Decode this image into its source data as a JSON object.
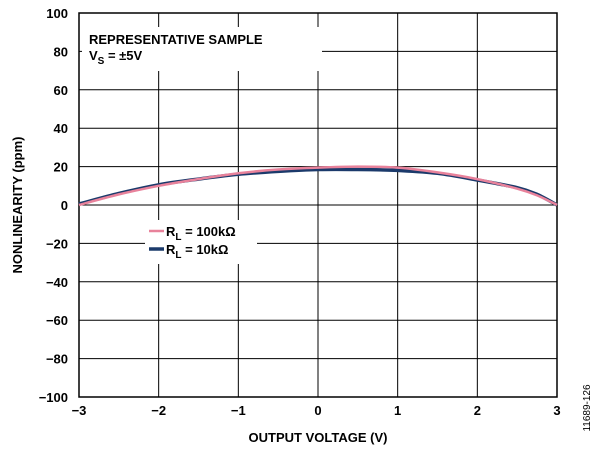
{
  "chart_data": {
    "type": "line",
    "title": "",
    "xlabel": "OUTPUT VOLTAGE (V)",
    "ylabel": "NONLINEARITY (ppm)",
    "xlim": [
      -3,
      3
    ],
    "ylim": [
      -100,
      100
    ],
    "x_ticks": [
      "−3",
      "−2",
      "−1",
      "0",
      "1",
      "2",
      "3"
    ],
    "y_ticks": [
      "100",
      "80",
      "60",
      "40",
      "20",
      "0",
      "−20",
      "−40",
      "−60",
      "−80",
      "−100"
    ],
    "grid": true,
    "annotation": {
      "line1": "REPRESENTATIVE SAMPLE",
      "line2_main": "V",
      "line2_sub": "S",
      "line2_rest": " = ±5V"
    },
    "legend_placement": "center-left",
    "series": [
      {
        "name_main": "R",
        "name_sub": "L",
        "name_rest": " = 100kΩ",
        "color": "#e8829b",
        "x": [
          -3,
          -2.5,
          -2,
          -1.5,
          -1,
          -0.5,
          0,
          0.5,
          1,
          1.5,
          2,
          2.5,
          2.75,
          3
        ],
        "values": [
          0,
          5.5,
          10,
          13.5,
          16.5,
          18.5,
          19.5,
          20,
          19.5,
          17,
          13.5,
          8.5,
          5,
          0
        ]
      },
      {
        "name_main": "R",
        "name_sub": "L",
        "name_rest": " = 10kΩ",
        "color": "#1b3a6b",
        "x": [
          -3,
          -2.5,
          -2,
          -1.5,
          -1,
          -0.5,
          0,
          0.5,
          1,
          1.5,
          2,
          2.5,
          2.75,
          3
        ],
        "values": [
          0.5,
          6,
          10.5,
          13.5,
          16,
          17.5,
          18.5,
          18.5,
          18,
          16.5,
          13,
          9,
          5.5,
          0
        ]
      }
    ]
  },
  "figure_id": "11689-126"
}
